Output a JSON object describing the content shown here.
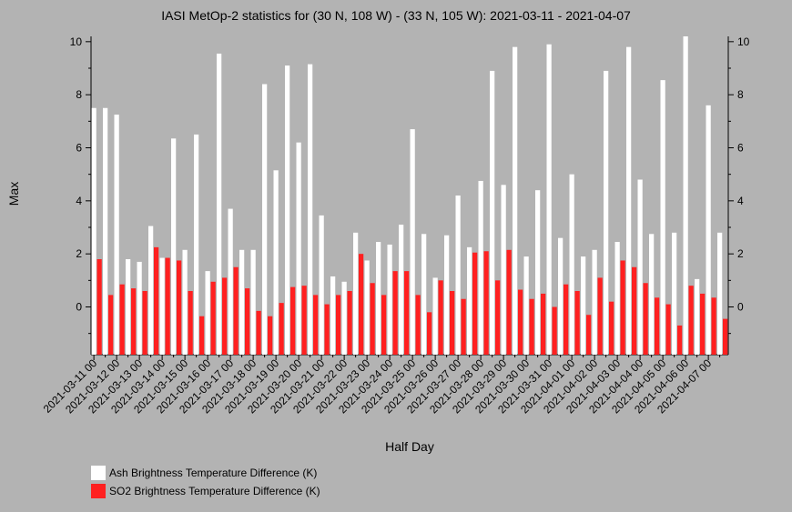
{
  "chart_data": {
    "type": "bar",
    "title": "IASI MetOp-2 statistics for (30 N, 108 W) - (33 N, 105 W): 2021-03-11 - 2021-04-07",
    "xlabel": "Half Day",
    "ylabel": "Max",
    "ylim": [
      -1.8,
      10.2
    ],
    "yticks": [
      0,
      2,
      4,
      6,
      8,
      10
    ],
    "xtick_labels": [
      "2021-03-11 00",
      "2021-03-12 00",
      "2021-03-13 00",
      "2021-03-14 00",
      "2021-03-15 00",
      "2021-03-16 00",
      "2021-03-17 00",
      "2021-03-18 00",
      "2021-03-19 00",
      "2021-03-20 00",
      "2021-03-21 00",
      "2021-03-22 00",
      "2021-03-23 00",
      "2021-03-24 00",
      "2021-03-25 00",
      "2021-03-26 00",
      "2021-03-27 00",
      "2021-03-28 00",
      "2021-03-29 00",
      "2021-03-30 00",
      "2021-03-31 00",
      "2021-04-01 00",
      "2021-04-02 00",
      "2021-04-03 00",
      "2021-04-04 00",
      "2021-04-05 00",
      "2021-04-06 00",
      "2021-04-07 00"
    ],
    "series": [
      {
        "name": "Ash Brightness Temperature Difference (K)",
        "color": "#ffffff",
        "values": [
          7.5,
          7.5,
          7.25,
          1.8,
          1.7,
          3.05,
          1.85,
          6.35,
          2.15,
          6.5,
          1.35,
          9.55,
          3.7,
          2.15,
          2.15,
          8.4,
          5.15,
          9.1,
          6.2,
          9.15,
          3.45,
          1.15,
          0.95,
          2.8,
          1.75,
          2.45,
          2.35,
          3.1,
          6.7,
          2.75,
          1.1,
          2.7,
          4.2,
          2.25,
          4.75,
          8.9,
          4.6,
          9.8,
          1.9,
          4.4,
          9.9,
          2.6,
          5.0,
          1.9,
          2.15,
          8.9,
          2.45,
          9.8,
          4.8,
          2.75,
          8.55,
          2.8,
          10.7,
          1.05,
          7.6,
          2.8
        ]
      },
      {
        "name": "SO2 Brightness Temperature Difference (K)",
        "color": "#ff2020",
        "values": [
          1.8,
          0.45,
          0.85,
          0.7,
          0.6,
          2.25,
          1.85,
          1.75,
          0.6,
          -0.35,
          0.95,
          1.1,
          1.5,
          0.7,
          -0.15,
          -0.35,
          0.15,
          0.75,
          0.8,
          0.45,
          0.1,
          0.45,
          0.6,
          2.0,
          0.9,
          0.45,
          1.35,
          1.35,
          0.45,
          -0.2,
          1.0,
          0.6,
          0.3,
          2.05,
          2.1,
          1.0,
          2.15,
          0.65,
          0.3,
          0.5,
          0.0,
          0.85,
          0.6,
          -0.3,
          1.1,
          0.2,
          1.75,
          1.5,
          0.9,
          0.35,
          0.1,
          -0.7,
          0.8,
          0.5,
          0.35,
          -0.45
        ]
      }
    ],
    "legend": "bottom-left",
    "grid": false
  }
}
